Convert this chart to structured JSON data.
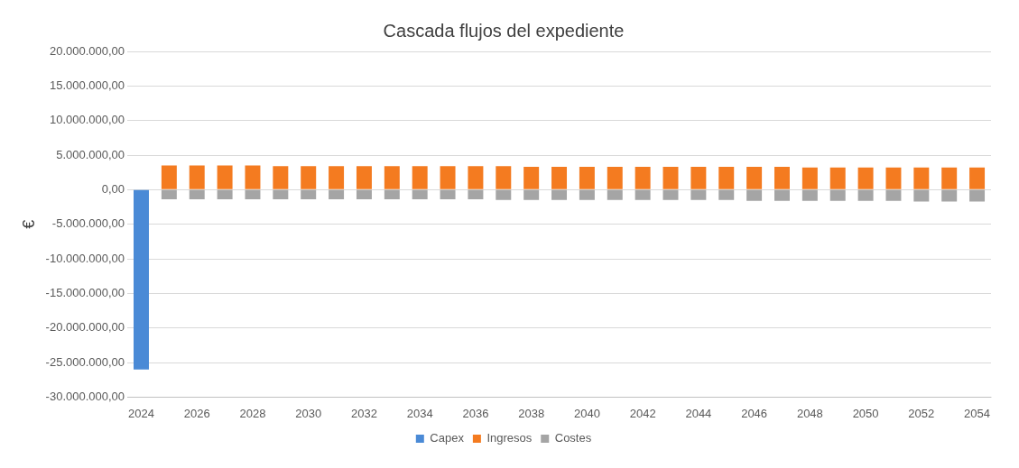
{
  "chart_data": {
    "type": "bar",
    "title": "Cascada flujos del expediente",
    "ylabel": "€",
    "stacked": true,
    "grid": "y",
    "legend": "bottom",
    "categories": [
      "2024",
      null,
      "2026",
      null,
      "2028",
      null,
      "2030",
      null,
      "2032",
      null,
      "2034",
      null,
      "2036",
      null,
      "2038",
      null,
      "2040",
      null,
      "2042",
      null,
      "2044",
      null,
      "2046",
      null,
      "2048",
      null,
      "2050",
      null,
      "2052",
      null,
      "2054"
    ],
    "series": [
      {
        "name": "Capex",
        "color": "#4a8ad6",
        "values": [
          -26000000,
          null,
          null,
          null,
          null,
          null,
          null,
          null,
          null,
          null,
          null,
          null,
          null,
          null,
          null,
          null,
          null,
          null,
          null,
          null,
          null,
          null,
          null,
          null,
          null,
          null,
          null,
          null,
          null,
          null,
          null
        ]
      },
      {
        "name": "Ingresos",
        "color": "#f47b20",
        "values": [
          null,
          3500000,
          3500000,
          3500000,
          3500000,
          3400000,
          3400000,
          3400000,
          3400000,
          3400000,
          3400000,
          3400000,
          3400000,
          3400000,
          3300000,
          3300000,
          3300000,
          3300000,
          3300000,
          3300000,
          3300000,
          3300000,
          3300000,
          3300000,
          3200000,
          3200000,
          3200000,
          3200000,
          3200000,
          3200000,
          3200000
        ]
      },
      {
        "name": "Costes",
        "color": "#a5a5a5",
        "values": [
          null,
          -1400000,
          -1400000,
          -1400000,
          -1400000,
          -1400000,
          -1400000,
          -1400000,
          -1400000,
          -1400000,
          -1400000,
          -1400000,
          -1400000,
          -1500000,
          -1500000,
          -1500000,
          -1500000,
          -1500000,
          -1500000,
          -1500000,
          -1500000,
          -1500000,
          -1600000,
          -1600000,
          -1600000,
          -1600000,
          -1600000,
          -1600000,
          -1700000,
          -1700000,
          -1700000
        ]
      }
    ],
    "ylim": [
      -30000000,
      20000000
    ],
    "yticks": [
      {
        "value": -30000000,
        "label": "-30.000.000,00"
      },
      {
        "value": -25000000,
        "label": "-25.000.000,00"
      },
      {
        "value": -20000000,
        "label": "-20.000.000,00"
      },
      {
        "value": -15000000,
        "label": "-15.000.000,00"
      },
      {
        "value": -10000000,
        "label": "-10.000.000,00"
      },
      {
        "value": -5000000,
        "label": "-5.000.000,00"
      },
      {
        "value": 0,
        "label": "0,00"
      },
      {
        "value": 5000000,
        "label": "5.000.000,00"
      },
      {
        "value": 10000000,
        "label": "10.000.000,00"
      },
      {
        "value": 15000000,
        "label": "15.000.000,00"
      },
      {
        "value": 20000000,
        "label": "20.000.000,00"
      }
    ]
  }
}
